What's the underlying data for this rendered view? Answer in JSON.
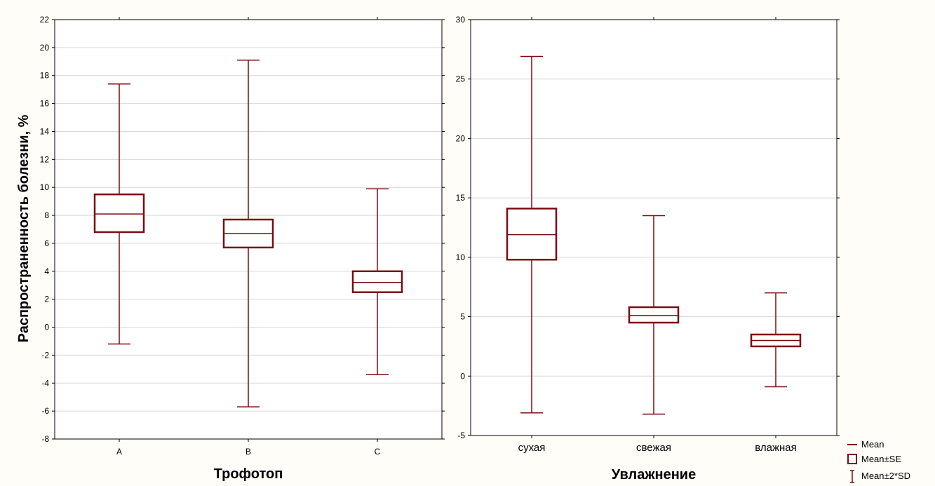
{
  "colors": {
    "mark": "#7a0c14",
    "grid": "#d6d6d6",
    "panel_bg": "#ffffff",
    "page_bg": "#fffdf7"
  },
  "y_axis_title": "Распространенность болезни, %",
  "legend": {
    "mean": "Mean",
    "se": "Mean±SE",
    "sd": "Mean±2*SD"
  },
  "chart_data": [
    {
      "type": "box",
      "xlabel": "Трофотоп",
      "ylabel": "Распространенность болезни, %",
      "ylim": [
        -8,
        22
      ],
      "yticks": [
        -8,
        -6,
        -4,
        -2,
        0,
        2,
        4,
        6,
        8,
        10,
        12,
        14,
        16,
        18,
        20,
        22
      ],
      "grid": true,
      "categories": [
        "A",
        "B",
        "C"
      ],
      "series": [
        {
          "mean": [
            8.1,
            6.7,
            3.2
          ],
          "se_low": [
            6.8,
            5.7,
            2.5
          ],
          "se_high": [
            9.5,
            7.7,
            4.0
          ],
          "sd2_low": [
            -1.2,
            -5.7,
            -3.4
          ],
          "sd2_high": [
            17.4,
            19.1,
            9.9
          ]
        }
      ]
    },
    {
      "type": "box",
      "xlabel": "Увлажнение",
      "ylabel": "",
      "ylim": [
        -5,
        30
      ],
      "yticks": [
        -5,
        0,
        5,
        10,
        15,
        20,
        25,
        30
      ],
      "grid": true,
      "categories": [
        "сухая",
        "свежая",
        "влажная"
      ],
      "series": [
        {
          "mean": [
            11.9,
            5.1,
            3.0
          ],
          "se_low": [
            9.8,
            4.5,
            2.5
          ],
          "se_high": [
            14.1,
            5.8,
            3.5
          ],
          "sd2_low": [
            -3.1,
            -3.2,
            -0.9
          ],
          "sd2_high": [
            26.9,
            13.5,
            7.0
          ]
        }
      ],
      "legend_position": "bottom-right"
    }
  ]
}
